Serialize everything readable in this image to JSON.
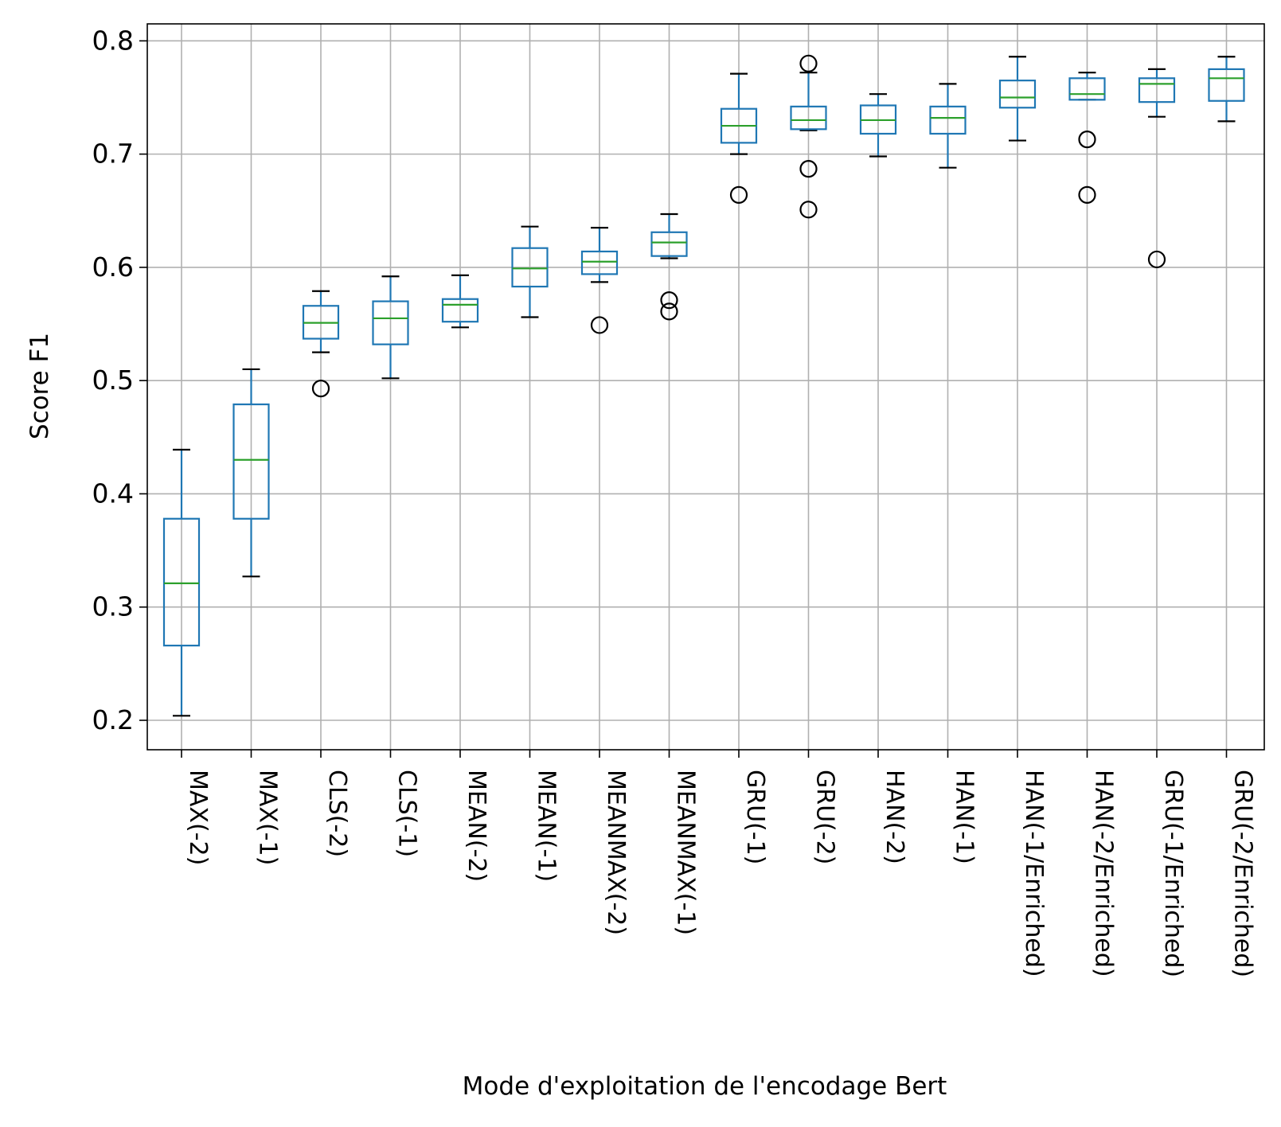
{
  "chart_data": {
    "type": "box",
    "title": "",
    "xlabel": "Mode d'exploitation de l'encodage Bert",
    "ylabel": "Score F1",
    "ylim": [
      0.174,
      0.815
    ],
    "yticks": [
      0.2,
      0.3,
      0.4,
      0.5,
      0.6,
      0.7,
      0.8
    ],
    "ytick_labels": [
      "0.2",
      "0.3",
      "0.4",
      "0.5",
      "0.6",
      "0.7",
      "0.8"
    ],
    "grid": true,
    "colors": {
      "box": "#1f77b4",
      "median": "#2ca02c",
      "whisker_cap": "#000000",
      "outlier": "#000000",
      "grid": "#b0b0b0"
    },
    "categories": [
      "MAX(-2)",
      "MAX(-1)",
      "CLS(-2)",
      "CLS(-1)",
      "MEAN(-2)",
      "MEAN(-1)",
      "MEANMAX(-2)",
      "MEANMAX(-1)",
      "GRU(-1)",
      "GRU(-2)",
      "HAN(-2)",
      "HAN(-1)",
      "HAN(-1/Enriched)",
      "HAN(-2/Enriched)",
      "GRU(-1/Enriched)",
      "GRU(-2/Enriched)"
    ],
    "boxes": [
      {
        "whislo": 0.204,
        "q1": 0.266,
        "med": 0.321,
        "q3": 0.378,
        "whishi": 0.439,
        "fliers": []
      },
      {
        "whislo": 0.327,
        "q1": 0.378,
        "med": 0.43,
        "q3": 0.479,
        "whishi": 0.51,
        "fliers": []
      },
      {
        "whislo": 0.525,
        "q1": 0.537,
        "med": 0.551,
        "q3": 0.566,
        "whishi": 0.579,
        "fliers": [
          0.493
        ]
      },
      {
        "whislo": 0.502,
        "q1": 0.532,
        "med": 0.555,
        "q3": 0.57,
        "whishi": 0.592,
        "fliers": []
      },
      {
        "whislo": 0.547,
        "q1": 0.552,
        "med": 0.567,
        "q3": 0.572,
        "whishi": 0.593,
        "fliers": []
      },
      {
        "whislo": 0.556,
        "q1": 0.583,
        "med": 0.599,
        "q3": 0.617,
        "whishi": 0.636,
        "fliers": []
      },
      {
        "whislo": 0.587,
        "q1": 0.594,
        "med": 0.605,
        "q3": 0.614,
        "whishi": 0.635,
        "fliers": [
          0.549
        ]
      },
      {
        "whislo": 0.608,
        "q1": 0.61,
        "med": 0.622,
        "q3": 0.631,
        "whishi": 0.647,
        "fliers": [
          0.571,
          0.561
        ]
      },
      {
        "whislo": 0.7,
        "q1": 0.71,
        "med": 0.725,
        "q3": 0.74,
        "whishi": 0.771,
        "fliers": [
          0.664
        ]
      },
      {
        "whislo": 0.721,
        "q1": 0.722,
        "med": 0.73,
        "q3": 0.742,
        "whishi": 0.772,
        "fliers": [
          0.78,
          0.687,
          0.651
        ]
      },
      {
        "whislo": 0.698,
        "q1": 0.718,
        "med": 0.73,
        "q3": 0.743,
        "whishi": 0.753,
        "fliers": []
      },
      {
        "whislo": 0.688,
        "q1": 0.718,
        "med": 0.732,
        "q3": 0.742,
        "whishi": 0.762,
        "fliers": []
      },
      {
        "whislo": 0.712,
        "q1": 0.741,
        "med": 0.75,
        "q3": 0.765,
        "whishi": 0.786,
        "fliers": []
      },
      {
        "whislo": 0.748,
        "q1": 0.748,
        "med": 0.753,
        "q3": 0.767,
        "whishi": 0.772,
        "fliers": [
          0.713,
          0.664
        ]
      },
      {
        "whislo": 0.733,
        "q1": 0.746,
        "med": 0.762,
        "q3": 0.767,
        "whishi": 0.775,
        "fliers": [
          0.607
        ]
      },
      {
        "whislo": 0.729,
        "q1": 0.747,
        "med": 0.767,
        "q3": 0.775,
        "whishi": 0.786,
        "fliers": []
      }
    ]
  }
}
